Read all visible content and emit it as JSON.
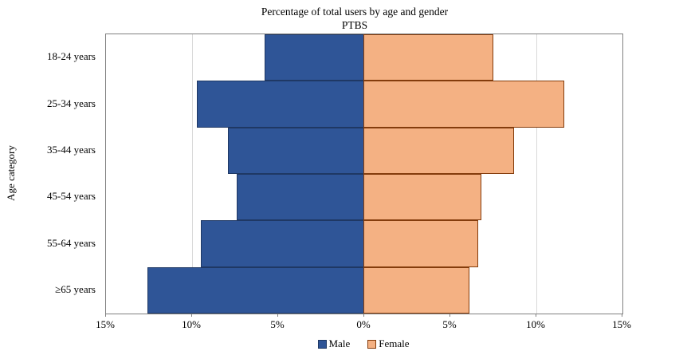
{
  "title": {
    "line1": "Percentage of total users by age and gender",
    "line2": "PTBS"
  },
  "y_axis_label": "Age category",
  "legend": {
    "male": "Male",
    "female": "Female"
  },
  "colors": {
    "male": "#2F5597",
    "male_border": "#1F3864",
    "female": "#F4B183",
    "female_border": "#843C0C",
    "grid": "#D9D9D9",
    "axis": "#808080"
  },
  "chart_data": {
    "type": "bar",
    "subtype": "population-pyramid",
    "title": "Percentage of total users by age and gender",
    "subtitle": "PTBS",
    "ylabel": "Age category",
    "xlabel": "",
    "categories": [
      "18-24 years",
      "25-34 years",
      "35-44 years",
      "45-54 years",
      "55-64 years",
      "≥65 years"
    ],
    "series": [
      {
        "name": "Male",
        "side": "left",
        "values": [
          5.8,
          9.7,
          7.9,
          7.4,
          9.5,
          12.6
        ]
      },
      {
        "name": "Female",
        "side": "right",
        "values": [
          7.5,
          11.6,
          8.7,
          6.8,
          6.6,
          6.1
        ]
      }
    ],
    "x_ticks": [
      "15%",
      "10%",
      "5%",
      "0%",
      "5%",
      "10%",
      "15%"
    ],
    "x_max_percent": 15,
    "grid": true,
    "legend_position": "bottom"
  }
}
